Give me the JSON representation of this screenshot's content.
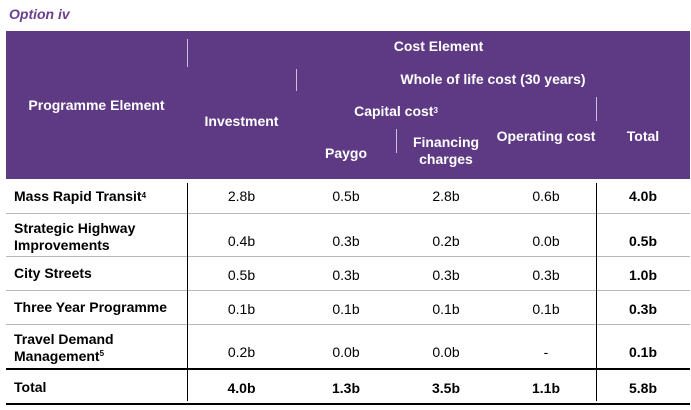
{
  "title": "Option iv",
  "header": {
    "programme_element": "Programme Element",
    "cost_element": "Cost Element",
    "whole_of_life": "Whole of life cost (30 years)",
    "investment": "Investment",
    "capital_cost": "Capital cost",
    "capital_cost_note": "3",
    "paygo": "Paygo",
    "financing": "Financing charges",
    "operating": "Operating cost",
    "total": "Total"
  },
  "rows": [
    {
      "name": "Mass Rapid Transit",
      "note": "4",
      "investment": "2.8b",
      "paygo": "0.5b",
      "financing": "2.8b",
      "operating": "0.6b",
      "total": "4.0b"
    },
    {
      "name": "Strategic Highway Improvements",
      "note": "",
      "investment": "0.4b",
      "paygo": "0.3b",
      "financing": "0.2b",
      "operating": "0.0b",
      "total": "0.5b"
    },
    {
      "name": "City Streets",
      "note": "",
      "investment": "0.5b",
      "paygo": "0.3b",
      "financing": "0.3b",
      "operating": "0.3b",
      "total": "1.0b"
    },
    {
      "name": "Three Year Programme",
      "note": "",
      "investment": "0.1b",
      "paygo": "0.1b",
      "financing": "0.1b",
      "operating": "0.1b",
      "total": "0.3b"
    },
    {
      "name": "Travel Demand Management",
      "note": "5",
      "investment": "0.2b",
      "paygo": "0.0b",
      "financing": "0.0b",
      "operating": "-",
      "total": "0.1b"
    },
    {
      "name": "Total",
      "note": "",
      "investment": "4.0b",
      "paygo": "1.3b",
      "financing": "3.5b",
      "operating": "1.1b",
      "total": "5.8b"
    }
  ]
}
